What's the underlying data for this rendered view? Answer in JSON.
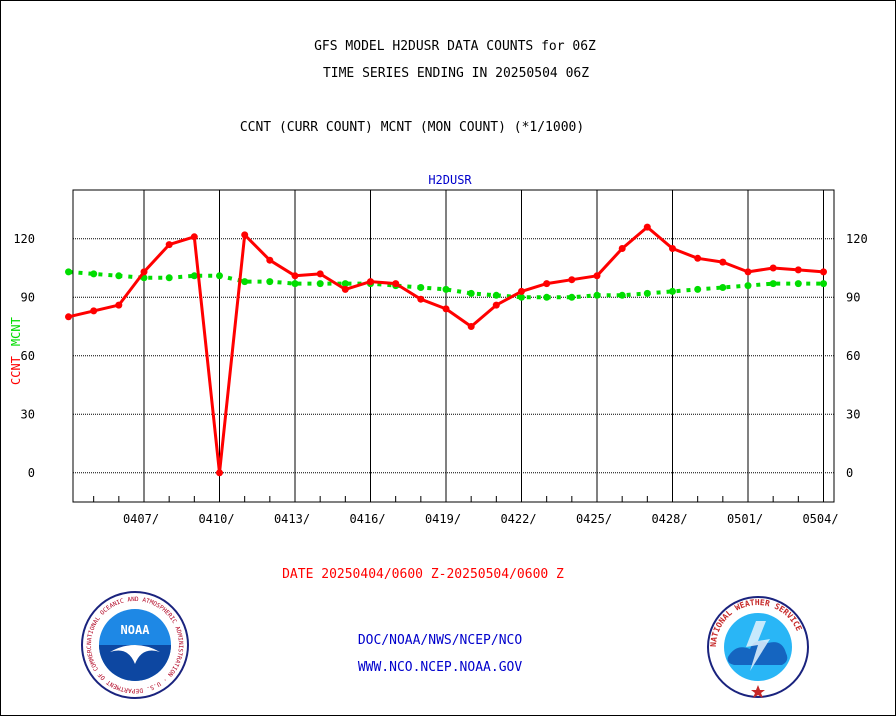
{
  "header": {
    "title_line1": "GFS MODEL H2DUSR DATA COUNTS for 06Z",
    "title_line2": "TIME SERIES ENDING IN 20250504 06Z",
    "subtitle": "CCNT (CURR COUNT) MCNT (MON COUNT) (*1/1000)"
  },
  "footer": {
    "date_range": "DATE 20250404/0600 Z-20250504/0600 Z",
    "link1": "DOC/NOAA/NWS/NCEP/NCO",
    "link2": "WWW.NCO.NCEP.NOAA.GOV"
  },
  "logos": {
    "noaa_text": "NOAA",
    "noaa_ring": "NATIONAL OCEANIC AND ATMOSPHERIC ADMINISTRATION · U.S. DEPARTMENT OF COMMERCE",
    "nws_ring": "NATIONAL WEATHER SERVICE"
  },
  "colors": {
    "ccnt": "#ff0000",
    "mcnt": "#00dd00",
    "series_title": "#0000cc"
  },
  "chart_data": {
    "type": "line",
    "title": "H2DUSR",
    "ylabel_parts": [
      "CCNT",
      "MCNT"
    ],
    "x_ticks": [
      "0407/",
      "0410/",
      "0413/",
      "0416/",
      "0419/",
      "0422/",
      "0425/",
      "0428/",
      "0501/",
      "0504/"
    ],
    "x_day_start": 0,
    "x_day_end": 30,
    "ylim": [
      -15,
      145
    ],
    "y_ticks": [
      0,
      30,
      60,
      90,
      120
    ],
    "grid": true,
    "series": [
      {
        "name": "CCNT",
        "x": [
          0,
          1,
          2,
          3,
          4,
          5,
          6,
          7,
          8,
          9,
          10,
          11,
          12,
          13,
          14,
          15,
          16,
          17,
          18,
          19,
          20,
          21,
          22,
          23,
          24,
          25,
          26,
          27,
          28,
          29,
          30
        ],
        "values": [
          80,
          83,
          86,
          103,
          117,
          121,
          0,
          122,
          109,
          101,
          102,
          94,
          98,
          97,
          89,
          84,
          75,
          86,
          93,
          97,
          99,
          101,
          115,
          126,
          115,
          110,
          108,
          103,
          105,
          104,
          103
        ]
      },
      {
        "name": "MCNT",
        "x": [
          0,
          1,
          2,
          3,
          4,
          5,
          6,
          7,
          8,
          9,
          10,
          11,
          12,
          13,
          14,
          15,
          16,
          17,
          18,
          19,
          20,
          21,
          22,
          23,
          24,
          25,
          26,
          27,
          28,
          29,
          30
        ],
        "values": [
          103,
          102,
          101,
          100,
          100,
          101,
          101,
          98,
          98,
          97,
          97,
          97,
          97,
          96,
          95,
          94,
          92,
          91,
          90,
          90,
          90,
          91,
          91,
          92,
          93,
          94,
          95,
          96,
          97,
          97,
          97
        ]
      }
    ]
  }
}
